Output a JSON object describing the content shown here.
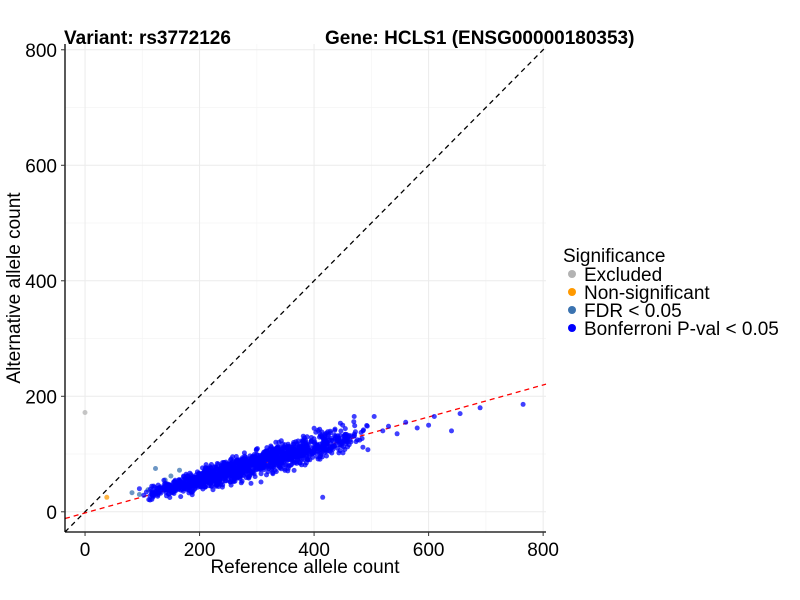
{
  "chart_data": {
    "type": "scatter",
    "title_left": "Variant: rs3772126",
    "title_right": "Gene: HCLS1 (ENSG00000180353)",
    "xlabel": "Reference allele count",
    "ylabel": "Alternative allele count",
    "xlim": [
      -35,
      805
    ],
    "ylim": [
      -35,
      810
    ],
    "x_ticks": [
      0,
      200,
      400,
      600,
      800
    ],
    "y_ticks": [
      0,
      200,
      400,
      600,
      800
    ],
    "grid": true,
    "legend": {
      "title": "Significance",
      "position": "right",
      "items": [
        {
          "label": "Excluded",
          "color": "#b3b3b3"
        },
        {
          "label": "Non-significant",
          "color": "#ff9900"
        },
        {
          "label": "FDR < 0.05",
          "color": "#3b73b0"
        },
        {
          "label": "Bonferroni P-val < 0.05",
          "color": "#0000ff"
        }
      ]
    },
    "reference_lines": [
      {
        "name": "identity-line",
        "slope": 1,
        "intercept": 0,
        "color": "#000000",
        "style": "dashed"
      },
      {
        "name": "fit-line",
        "slope": 0.277,
        "intercept": -2,
        "color": "#ff0000",
        "style": "dashed"
      }
    ],
    "series": [
      {
        "name": "Excluded",
        "color": "#b3b3b3",
        "points": [
          {
            "x": 0,
            "y": 172
          }
        ]
      },
      {
        "name": "Non-significant",
        "color": "#ff9900",
        "points": [
          {
            "x": 38,
            "y": 25
          }
        ]
      },
      {
        "name": "FDR < 0.05",
        "color": "#3b73b0",
        "points": [
          {
            "x": 82,
            "y": 33
          },
          {
            "x": 95,
            "y": 30
          },
          {
            "x": 110,
            "y": 38
          },
          {
            "x": 123,
            "y": 75
          },
          {
            "x": 150,
            "y": 62
          },
          {
            "x": 165,
            "y": 72
          },
          {
            "x": 140,
            "y": 55
          }
        ]
      },
      {
        "name": "Bonferroni P-val < 0.05",
        "color": "#0000ff",
        "cluster": {
          "x_min": 100,
          "x_max": 500,
          "x_mode": 260,
          "slope": 0.28,
          "intercept": 0,
          "spread": 14,
          "n": 1400
        },
        "points": [
          {
            "x": 765,
            "y": 186
          },
          {
            "x": 690,
            "y": 180
          },
          {
            "x": 655,
            "y": 170
          },
          {
            "x": 640,
            "y": 140
          },
          {
            "x": 610,
            "y": 165
          },
          {
            "x": 600,
            "y": 150
          },
          {
            "x": 580,
            "y": 145
          },
          {
            "x": 560,
            "y": 155
          },
          {
            "x": 545,
            "y": 135
          },
          {
            "x": 530,
            "y": 148
          },
          {
            "x": 520,
            "y": 140
          },
          {
            "x": 505,
            "y": 165
          },
          {
            "x": 470,
            "y": 165
          },
          {
            "x": 450,
            "y": 150
          },
          {
            "x": 415,
            "y": 25
          },
          {
            "x": 120,
            "y": 28
          },
          {
            "x": 95,
            "y": 40
          }
        ]
      }
    ]
  }
}
